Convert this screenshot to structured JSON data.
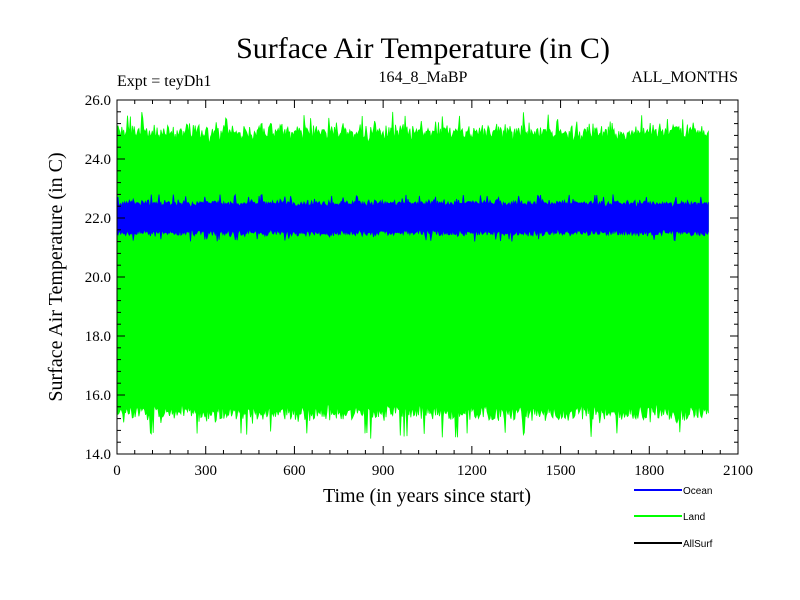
{
  "chart_data": {
    "type": "line",
    "title": "Surface Air Temperature (in C)",
    "subtitle_left": "Expt = teyDh1",
    "subtitle_center": "164_8_MaBP",
    "subtitle_right": "ALL_MONTHS",
    "xlabel": "Time (in years since start)",
    "ylabel": "Surface Air Temperature (in C)",
    "xlim": [
      0,
      2100
    ],
    "ylim": [
      14.0,
      26.0
    ],
    "x_ticks": [
      0,
      300,
      600,
      900,
      1200,
      1500,
      1800,
      2100
    ],
    "x_tick_labels": [
      "0",
      "300",
      "600",
      "900",
      "1200",
      "1500",
      "1800",
      "2100"
    ],
    "y_ticks": [
      14.0,
      16.0,
      18.0,
      20.0,
      22.0,
      24.0,
      26.0
    ],
    "y_tick_labels": [
      "14.0",
      "16.0",
      "18.0",
      "20.0",
      "22.0",
      "24.0",
      "26.0"
    ],
    "x_range_data": [
      0,
      2000
    ],
    "series": [
      {
        "name": "Land",
        "color": "#00ff00",
        "description": "monthly values oscillating seasonally",
        "upper_envelope_mean": 24.9,
        "upper_envelope_max": 25.6,
        "lower_envelope_mean": 15.4,
        "lower_envelope_min": 14.5
      },
      {
        "name": "Ocean",
        "color": "#0000ff",
        "upper_envelope_mean": 22.5,
        "upper_envelope_max": 22.8,
        "lower_envelope_mean": 21.5,
        "lower_envelope_min": 21.2
      },
      {
        "name": "AllSurf",
        "color": "#000000"
      }
    ],
    "legend": [
      {
        "label": "Ocean",
        "color": "#0000ff"
      },
      {
        "label": "Land",
        "color": "#00ff00"
      },
      {
        "label": "AllSurf",
        "color": "#000000"
      }
    ],
    "legend_position": "bottom-right"
  }
}
